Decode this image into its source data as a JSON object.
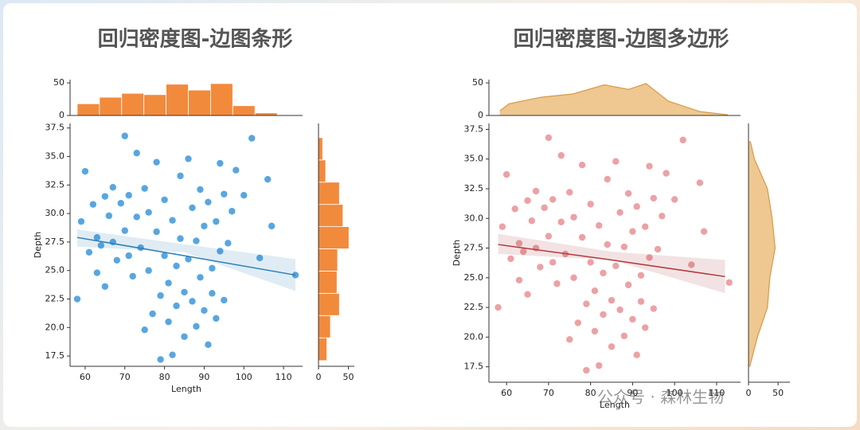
{
  "chart_data": [
    {
      "type": "scatter",
      "title": "回归密度图-边图条形",
      "x_label": "Length",
      "y_label": "Depth",
      "color": "#3a97dd",
      "alpha": 0.85,
      "x": [
        58,
        59,
        60,
        61,
        62,
        63,
        63,
        64,
        65,
        65,
        66,
        67,
        67,
        68,
        69,
        70,
        70,
        71,
        71,
        72,
        73,
        73,
        74,
        75,
        75,
        76,
        76,
        77,
        78,
        78,
        79,
        79,
        80,
        80,
        81,
        81,
        82,
        82,
        83,
        83,
        84,
        84,
        85,
        85,
        86,
        86,
        87,
        87,
        88,
        88,
        89,
        89,
        90,
        90,
        91,
        91,
        92,
        92,
        93,
        93,
        94,
        94,
        95,
        95,
        96,
        97,
        98,
        100,
        102,
        104,
        106,
        107,
        113
      ],
      "y": [
        22.5,
        29.3,
        33.7,
        26.6,
        30.8,
        27.9,
        24.8,
        27.2,
        31.5,
        23.6,
        29.8,
        32.3,
        27.5,
        25.9,
        30.9,
        36.8,
        28.5,
        26.3,
        31.6,
        24.5,
        35.3,
        29.7,
        27.0,
        32.2,
        19.8,
        30.1,
        25.0,
        21.2,
        34.5,
        28.4,
        17.2,
        22.8,
        26.3,
        31.2,
        20.5,
        23.9,
        29.4,
        17.6,
        25.4,
        21.9,
        33.3,
        27.8,
        19.2,
        23.1,
        34.8,
        26.0,
        22.3,
        30.5,
        20.1,
        27.6,
        32.1,
        24.4,
        21.5,
        28.9,
        31.0,
        18.5,
        25.2,
        23.0,
        29.3,
        20.8,
        34.4,
        26.7,
        22.4,
        31.7,
        27.4,
        30.2,
        33.8,
        31.6,
        36.6,
        26.1,
        33.0,
        28.9,
        24.6
      ],
      "xlim": [
        56.2,
        114.8
      ],
      "xticks": [
        60,
        70,
        80,
        90,
        100,
        110
      ],
      "ylim": [
        16.6,
        37.9
      ],
      "yticks": [
        17.5,
        {
          "value": 20,
          "label": "20.0"
        },
        22.5,
        {
          "value": 25,
          "label": "25.0"
        },
        27.5,
        {
          "value": 30,
          "label": "30.0"
        },
        32.5,
        {
          "value": 35,
          "label": "35.0"
        },
        37.5
      ],
      "fit": {
        "x": [
          58,
          85,
          113
        ],
        "y": [
          27.9,
          26.3,
          24.6
        ],
        "lower": [
          27.1,
          26.6,
          23.2
        ],
        "upper": [
          28.6,
          27.3,
          26.0
        ],
        "color": "#2b7fb8"
      },
      "top": {
        "type": "bar",
        "color": "#f28a3c",
        "bins": [
          58,
          63.6,
          69.2,
          74.8,
          80.4,
          86,
          91.6,
          97.2,
          102.8,
          108.4,
          114
        ],
        "values": [
          18,
          28,
          34,
          32,
          48,
          39,
          49,
          15,
          4,
          1
        ],
        "ylim": [
          0,
          55
        ],
        "yticks": [
          0,
          50
        ]
      },
      "right": {
        "type": "bar",
        "color": "#f28a3c",
        "bins": [
          17.1,
          19.1,
          21.05,
          23,
          24.95,
          26.9,
          28.85,
          30.8,
          32.75,
          34.7,
          36.65
        ],
        "values": [
          14,
          20,
          35,
          31,
          32,
          51,
          41,
          35,
          12,
          7
        ],
        "xlim": [
          0,
          60
        ],
        "xticks": [
          0,
          50
        ]
      }
    },
    {
      "type": "scatter",
      "title": "回归密度图-边图多边形",
      "x_label": "Length",
      "y_label": "Depth",
      "color": "#d9434c",
      "alpha": 0.5,
      "x": [
        58,
        59,
        60,
        61,
        62,
        63,
        63,
        64,
        65,
        65,
        66,
        67,
        67,
        68,
        69,
        70,
        70,
        71,
        71,
        72,
        73,
        73,
        74,
        75,
        75,
        76,
        76,
        77,
        78,
        78,
        79,
        79,
        80,
        80,
        81,
        81,
        82,
        82,
        83,
        83,
        84,
        84,
        85,
        85,
        86,
        86,
        87,
        87,
        88,
        88,
        89,
        89,
        90,
        90,
        91,
        91,
        92,
        92,
        93,
        93,
        94,
        94,
        95,
        95,
        96,
        97,
        98,
        100,
        102,
        104,
        106,
        107,
        113
      ],
      "y": [
        22.5,
        29.3,
        33.7,
        26.6,
        30.8,
        27.9,
        24.8,
        27.2,
        31.5,
        23.6,
        29.8,
        32.3,
        27.5,
        25.9,
        30.9,
        36.8,
        28.5,
        26.3,
        31.6,
        24.5,
        35.3,
        29.7,
        27.0,
        32.2,
        19.8,
        30.1,
        25.0,
        21.2,
        34.5,
        28.4,
        17.2,
        22.8,
        26.3,
        31.2,
        20.5,
        23.9,
        29.4,
        17.6,
        25.4,
        21.9,
        33.3,
        27.8,
        19.2,
        23.1,
        34.8,
        26.0,
        22.3,
        30.5,
        20.1,
        27.6,
        32.1,
        24.4,
        21.5,
        28.9,
        31.0,
        18.5,
        25.2,
        23.0,
        29.3,
        20.8,
        34.4,
        26.7,
        22.4,
        31.7,
        27.4,
        30.2,
        33.8,
        31.6,
        36.6,
        26.1,
        33.0,
        28.9,
        24.6
      ],
      "xlim": [
        55.8,
        115.7
      ],
      "xticks": [
        60,
        70,
        80,
        90,
        100,
        110
      ],
      "ylim": [
        16.2,
        38.0
      ],
      "yticks": [
        17.5,
        {
          "value": 20,
          "label": "20.0"
        },
        22.5,
        {
          "value": 25,
          "label": "25.0"
        },
        27.5,
        {
          "value": 30,
          "label": "30.0"
        },
        32.5,
        {
          "value": 35,
          "label": "35.0"
        },
        37.5
      ],
      "fit": {
        "x": [
          58,
          85,
          112
        ],
        "y": [
          27.8,
          26.5,
          25.1
        ],
        "lower": [
          27.0,
          26.5,
          23.7
        ],
        "upper": [
          28.7,
          27.2,
          26.5
        ],
        "color": "#b03a40"
      },
      "top": {
        "type": "area",
        "color": "#e8b46c",
        "x": [
          58.4,
          60.6,
          68.2,
          75.8,
          83.3,
          89,
          93.2,
          98.5,
          106,
          112.7
        ],
        "values": [
          7,
          18,
          28,
          33,
          47,
          40,
          49,
          22,
          6,
          1
        ],
        "ylim": [
          0,
          55
        ],
        "yticks": [
          0,
          50
        ]
      },
      "right": {
        "type": "area",
        "color": "#e8b46c",
        "y": [
          17.5,
          20,
          22.5,
          25,
          27.5,
          30,
          32.5,
          35,
          36.5
        ],
        "values": [
          2,
          15,
          32,
          36,
          45,
          40,
          32,
          10,
          3
        ],
        "xlim": [
          0,
          70
        ],
        "xticks": [
          0,
          50
        ]
      }
    }
  ],
  "watermark": "公众号 · 森林生物"
}
